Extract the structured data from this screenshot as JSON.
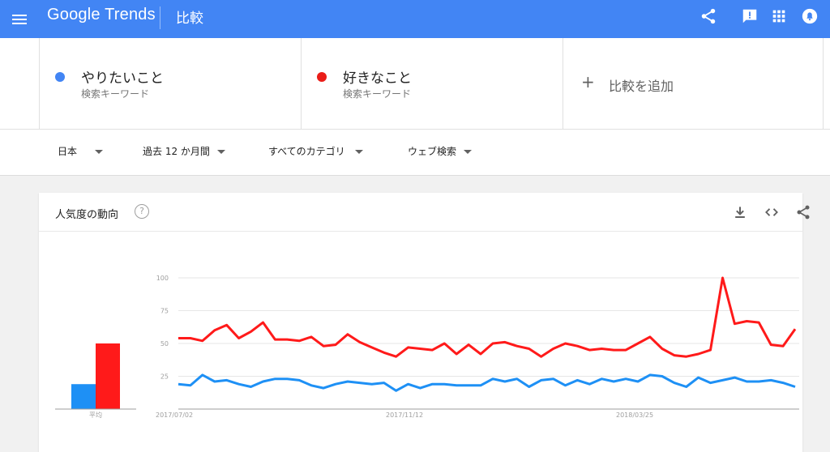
{
  "appbar": {
    "logo": "Google Trends",
    "page_title": "比較",
    "background": "#4285f4"
  },
  "terms": [
    {
      "name": "やりたいこと",
      "type": "検索キーワード",
      "color": "#4285f4"
    },
    {
      "name": "好きなこと",
      "type": "検索キーワード",
      "color": "#ea1d18"
    }
  ],
  "add_compare": "比較を追加",
  "filters": {
    "region": "日本",
    "period": "過去 12 か月間",
    "category": "すべてのカテゴリ",
    "search_type": "ウェブ検索"
  },
  "card": {
    "title": "人気度の動向",
    "help": "?"
  },
  "chart_data": {
    "type": "line",
    "ylim": [
      0,
      100
    ],
    "yticks": [
      "100",
      "75",
      "50",
      "25"
    ],
    "x_tick_labels": [
      "2017/07/02",
      "2017/11/12",
      "2018/03/25"
    ],
    "average_label": "平均",
    "averages": [
      19,
      50
    ],
    "series": [
      {
        "name": "やりたいこと",
        "color": "#1e90f5",
        "values": [
          19,
          18,
          26,
          21,
          22,
          19,
          17,
          21,
          23,
          23,
          22,
          18,
          16,
          19,
          21,
          20,
          19,
          20,
          14,
          19,
          16,
          19,
          19,
          18,
          18,
          18,
          23,
          21,
          23,
          17,
          22,
          23,
          18,
          22,
          19,
          23,
          21,
          23,
          21,
          26,
          25,
          20,
          17,
          24,
          20,
          22,
          24,
          21,
          21,
          22,
          20,
          17
        ]
      },
      {
        "name": "好きなこと",
        "color": "#ff1a1a",
        "values": [
          54,
          54,
          52,
          60,
          64,
          54,
          59,
          66,
          53,
          53,
          52,
          55,
          48,
          49,
          57,
          51,
          47,
          43,
          40,
          47,
          46,
          45,
          50,
          42,
          49,
          42,
          50,
          51,
          48,
          46,
          40,
          46,
          50,
          48,
          45,
          46,
          45,
          45,
          50,
          55,
          46,
          41,
          40,
          42,
          45,
          100,
          65,
          67,
          66,
          49,
          48,
          61
        ]
      }
    ]
  }
}
